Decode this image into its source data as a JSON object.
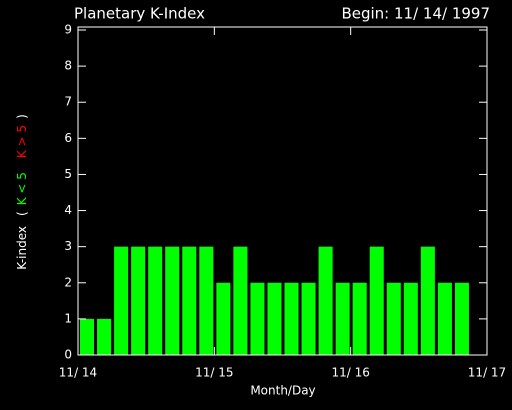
{
  "chart_data": {
    "type": "histogram",
    "title": "Planetary K-Index",
    "subtitle": "Begin: 11/ 14/ 1997",
    "xlabel": "Month/Day",
    "ylabel": {
      "name": "K-index",
      "open": "(",
      "low": "K < 5",
      "high": "K > 5",
      "close": ")",
      "low_color": "#00ff00",
      "high_color": "#ff0000"
    },
    "bins": [
      14,
      14.125,
      14.25,
      14.375,
      14.5,
      14.625,
      14.75,
      14.875,
      15,
      15.125,
      15.25,
      15.375,
      15.5,
      15.625,
      15.75,
      15.875,
      16,
      16.125,
      16.25,
      16.375,
      16.5,
      16.625,
      16.75,
      16.875
    ],
    "values": [
      1,
      1,
      3,
      3,
      3,
      3,
      3,
      3,
      2,
      3,
      2,
      2,
      2,
      2,
      3,
      2,
      2,
      3,
      2,
      2,
      3,
      2,
      2
    ],
    "color": "#00ff00",
    "xlim": [
      14,
      17
    ],
    "xticks": [
      {
        "value": 14,
        "label": "11/ 14"
      },
      {
        "value": 15,
        "label": "11/ 15"
      },
      {
        "value": 16,
        "label": "11/ 16"
      },
      {
        "value": 17,
        "label": "11/ 17"
      }
    ],
    "ylim": [
      0,
      9
    ],
    "yticks": [
      0,
      1,
      2,
      3,
      4,
      5,
      6,
      7,
      8,
      9
    ]
  }
}
